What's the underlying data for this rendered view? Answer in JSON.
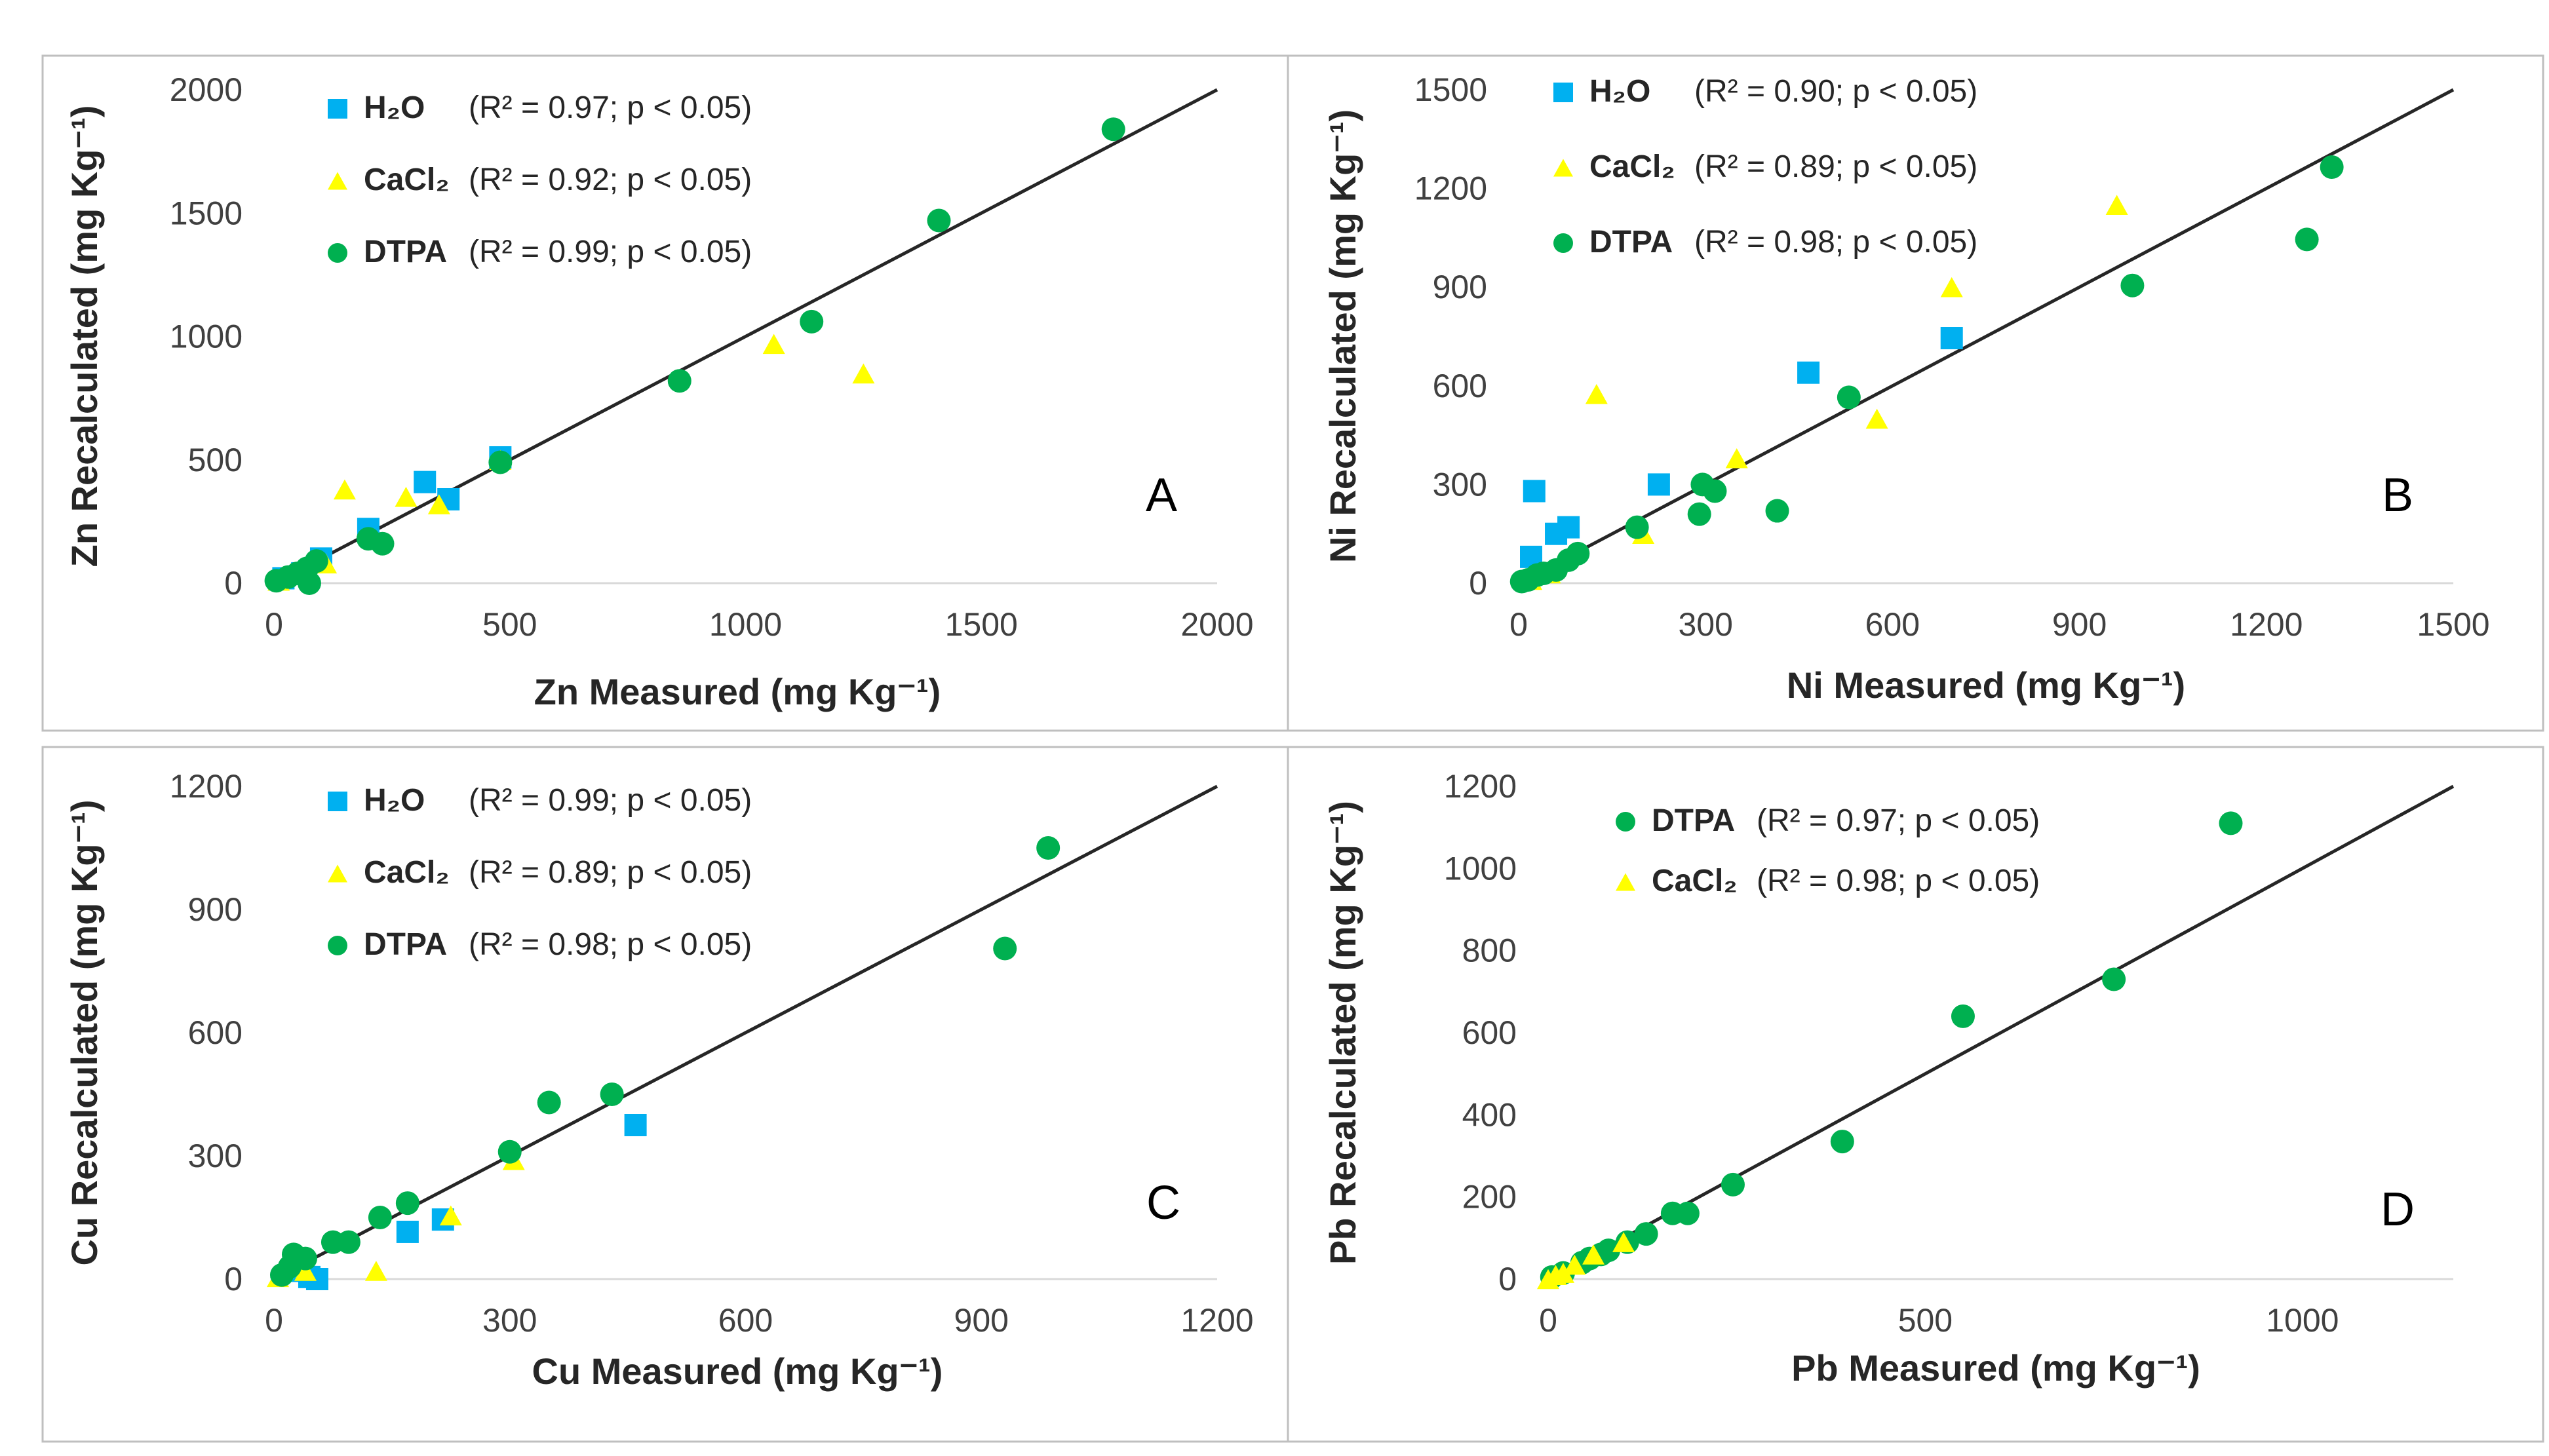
{
  "colors": {
    "h2o": "#00b0f0",
    "cacl2": "#ffff00",
    "dtpa": "#00b050",
    "line": "#262626"
  },
  "chart_data": [
    {
      "type": "scatter",
      "panel": "A",
      "xlabel": "Zn Measured (mg Kg⁻¹)",
      "ylabel": "Zn Recalculated (mg Kg⁻¹)",
      "xlim": [
        0,
        2000
      ],
      "ylim": [
        0,
        2000
      ],
      "xticks": [
        0,
        500,
        1000,
        1500,
        2000
      ],
      "yticks": [
        0,
        500,
        1000,
        1500,
        2000
      ],
      "fit_line": [
        [
          0,
          0
        ],
        [
          2000,
          2000
        ]
      ],
      "series": [
        {
          "name": "H₂O",
          "marker": "square",
          "stats": "(R² = 0.97; p < 0.05)",
          "points": [
            [
              20,
              20
            ],
            [
              60,
              40
            ],
            [
              100,
              100
            ],
            [
              200,
              220
            ],
            [
              320,
              410
            ],
            [
              370,
              340
            ],
            [
              480,
              510
            ]
          ]
        },
        {
          "name": "CaCl₂",
          "marker": "triangle",
          "stats": "(R² = 0.92; p < 0.05)",
          "points": [
            [
              10,
              10
            ],
            [
              60,
              50
            ],
            [
              110,
              80
            ],
            [
              150,
              380
            ],
            [
              280,
              350
            ],
            [
              350,
              320
            ],
            [
              480,
              500
            ],
            [
              1060,
              970
            ],
            [
              1250,
              850
            ]
          ]
        },
        {
          "name": "DTPA",
          "marker": "circle",
          "stats": "(R² = 0.99; p < 0.05)",
          "points": [
            [
              5,
              10
            ],
            [
              30,
              25
            ],
            [
              50,
              40
            ],
            [
              70,
              60
            ],
            [
              75,
              0
            ],
            [
              90,
              90
            ],
            [
              200,
              180
            ],
            [
              230,
              160
            ],
            [
              480,
              490
            ],
            [
              860,
              820
            ],
            [
              1140,
              1060
            ],
            [
              1410,
              1470
            ],
            [
              1780,
              1840
            ]
          ]
        }
      ]
    },
    {
      "type": "scatter",
      "panel": "B",
      "xlabel": "Ni Measured (mg Kg⁻¹)",
      "ylabel": "Ni Recalculated (mg Kg⁻¹)",
      "xlim": [
        0,
        1500
      ],
      "ylim": [
        0,
        1500
      ],
      "xticks": [
        0,
        300,
        600,
        900,
        1200,
        1500
      ],
      "yticks": [
        0,
        300,
        600,
        900,
        1200,
        1500
      ],
      "fit_line": [
        [
          0,
          0
        ],
        [
          1500,
          1500
        ]
      ],
      "series": [
        {
          "name": "H₂O",
          "marker": "square",
          "stats": "(R² = 0.90; p < 0.05)",
          "points": [
            [
              20,
              80
            ],
            [
              25,
              280
            ],
            [
              60,
              150
            ],
            [
              80,
              170
            ],
            [
              225,
              300
            ],
            [
              465,
              640
            ],
            [
              695,
              745
            ]
          ]
        },
        {
          "name": "CaCl₂",
          "marker": "triangle",
          "stats": "(R² = 0.89; p < 0.05)",
          "points": [
            [
              20,
              10
            ],
            [
              50,
              30
            ],
            [
              125,
              575
            ],
            [
              200,
              150
            ],
            [
              350,
              380
            ],
            [
              575,
              500
            ],
            [
              695,
              900
            ],
            [
              960,
              1150
            ]
          ]
        },
        {
          "name": "DTPA",
          "marker": "circle",
          "stats": "(R² = 0.98; p < 0.05)",
          "points": [
            [
              5,
              5
            ],
            [
              15,
              10
            ],
            [
              30,
              25
            ],
            [
              40,
              30
            ],
            [
              60,
              40
            ],
            [
              80,
              70
            ],
            [
              95,
              90
            ],
            [
              190,
              170
            ],
            [
              290,
              210
            ],
            [
              295,
              300
            ],
            [
              315,
              280
            ],
            [
              415,
              220
            ],
            [
              530,
              565
            ],
            [
              985,
              905
            ],
            [
              1265,
              1045
            ],
            [
              1305,
              1265
            ]
          ]
        }
      ]
    },
    {
      "type": "scatter",
      "panel": "C",
      "xlabel": "Cu Measured (mg Kg⁻¹)",
      "ylabel": "Cu Recalculated (mg Kg⁻¹)",
      "xlim": [
        0,
        1200
      ],
      "ylim": [
        0,
        1200
      ],
      "xticks": [
        0,
        300,
        600,
        900,
        1200
      ],
      "yticks": [
        0,
        300,
        600,
        900,
        1200
      ],
      "fit_line": [
        [
          0,
          0
        ],
        [
          1200,
          1200
        ]
      ],
      "series": [
        {
          "name": "H₂O",
          "marker": "square",
          "stats": "(R² = 0.99; p < 0.05)",
          "points": [
            [
              30,
              20
            ],
            [
              45,
              5
            ],
            [
              55,
              0
            ],
            [
              170,
              115
            ],
            [
              215,
              145
            ],
            [
              460,
              375
            ]
          ]
        },
        {
          "name": "CaCl₂",
          "marker": "triangle",
          "stats": "(R² = 0.89; p < 0.05)",
          "points": [
            [
              5,
              5
            ],
            [
              40,
              20
            ],
            [
              130,
              20
            ],
            [
              225,
              155
            ],
            [
              305,
              290
            ]
          ]
        },
        {
          "name": "DTPA",
          "marker": "circle",
          "stats": "(R² = 0.98; p < 0.05)",
          "points": [
            [
              10,
              10
            ],
            [
              20,
              30
            ],
            [
              25,
              60
            ],
            [
              40,
              50
            ],
            [
              75,
              90
            ],
            [
              95,
              90
            ],
            [
              135,
              150
            ],
            [
              170,
              185
            ],
            [
              300,
              310
            ],
            [
              350,
              430
            ],
            [
              430,
              450
            ],
            [
              930,
              805
            ],
            [
              985,
              1050
            ]
          ]
        }
      ]
    },
    {
      "type": "scatter",
      "panel": "D",
      "xlabel": "Pb Measured (mg Kg⁻¹)",
      "ylabel": "Pb Recalculated (mg Kg⁻¹)",
      "xlim": [
        0,
        1200
      ],
      "ylim": [
        0,
        1200
      ],
      "xticks": [
        0,
        500,
        1000
      ],
      "yticks": [
        0,
        200,
        400,
        600,
        800,
        1000,
        1200
      ],
      "fit_line": [
        [
          0,
          0
        ],
        [
          1200,
          1200
        ]
      ],
      "series": [
        {
          "name": "DTPA",
          "marker": "circle",
          "stats": "(R² = 0.97; p < 0.05)",
          "points": [
            [
              5,
              5
            ],
            [
              20,
              15
            ],
            [
              45,
              40
            ],
            [
              55,
              50
            ],
            [
              70,
              60
            ],
            [
              80,
              70
            ],
            [
              105,
              90
            ],
            [
              130,
              110
            ],
            [
              165,
              160
            ],
            [
              185,
              160
            ],
            [
              245,
              230
            ],
            [
              390,
              335
            ],
            [
              550,
              640
            ],
            [
              750,
              730
            ],
            [
              905,
              1110
            ]
          ]
        },
        {
          "name": "CaCl₂",
          "marker": "triangle",
          "stats": "(R² = 0.98; p < 0.05)",
          "points": [
            [
              0,
              0
            ],
            [
              10,
              10
            ],
            [
              20,
              15
            ],
            [
              35,
              35
            ],
            [
              60,
              60
            ],
            [
              100,
              90
            ]
          ]
        }
      ]
    }
  ]
}
